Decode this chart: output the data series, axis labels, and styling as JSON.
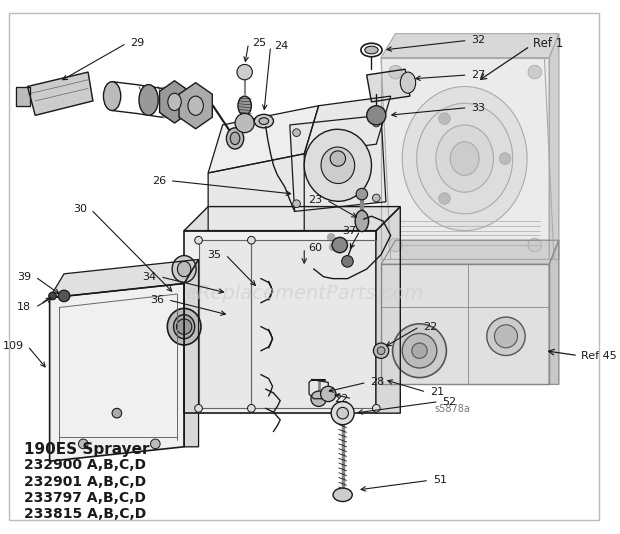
{
  "bg_color": "#ffffff",
  "border_color": "#bbbbbb",
  "watermark_text": "eReplacementParts.com",
  "bottom_title": "190ES Sprayer",
  "bottom_lines": [
    "232900 A,B,C,D",
    "232901 A,B,C,D",
    "233797 A,B,C,D",
    "233815 A,B,C,D"
  ],
  "diagram_id": "s5878a",
  "figsize": [
    6.2,
    5.34
  ],
  "dpi": 100,
  "dark": "#1a1a1a",
  "lgray": "#aaaaaa",
  "mid": "#666666",
  "vlgray": "#cccccc"
}
